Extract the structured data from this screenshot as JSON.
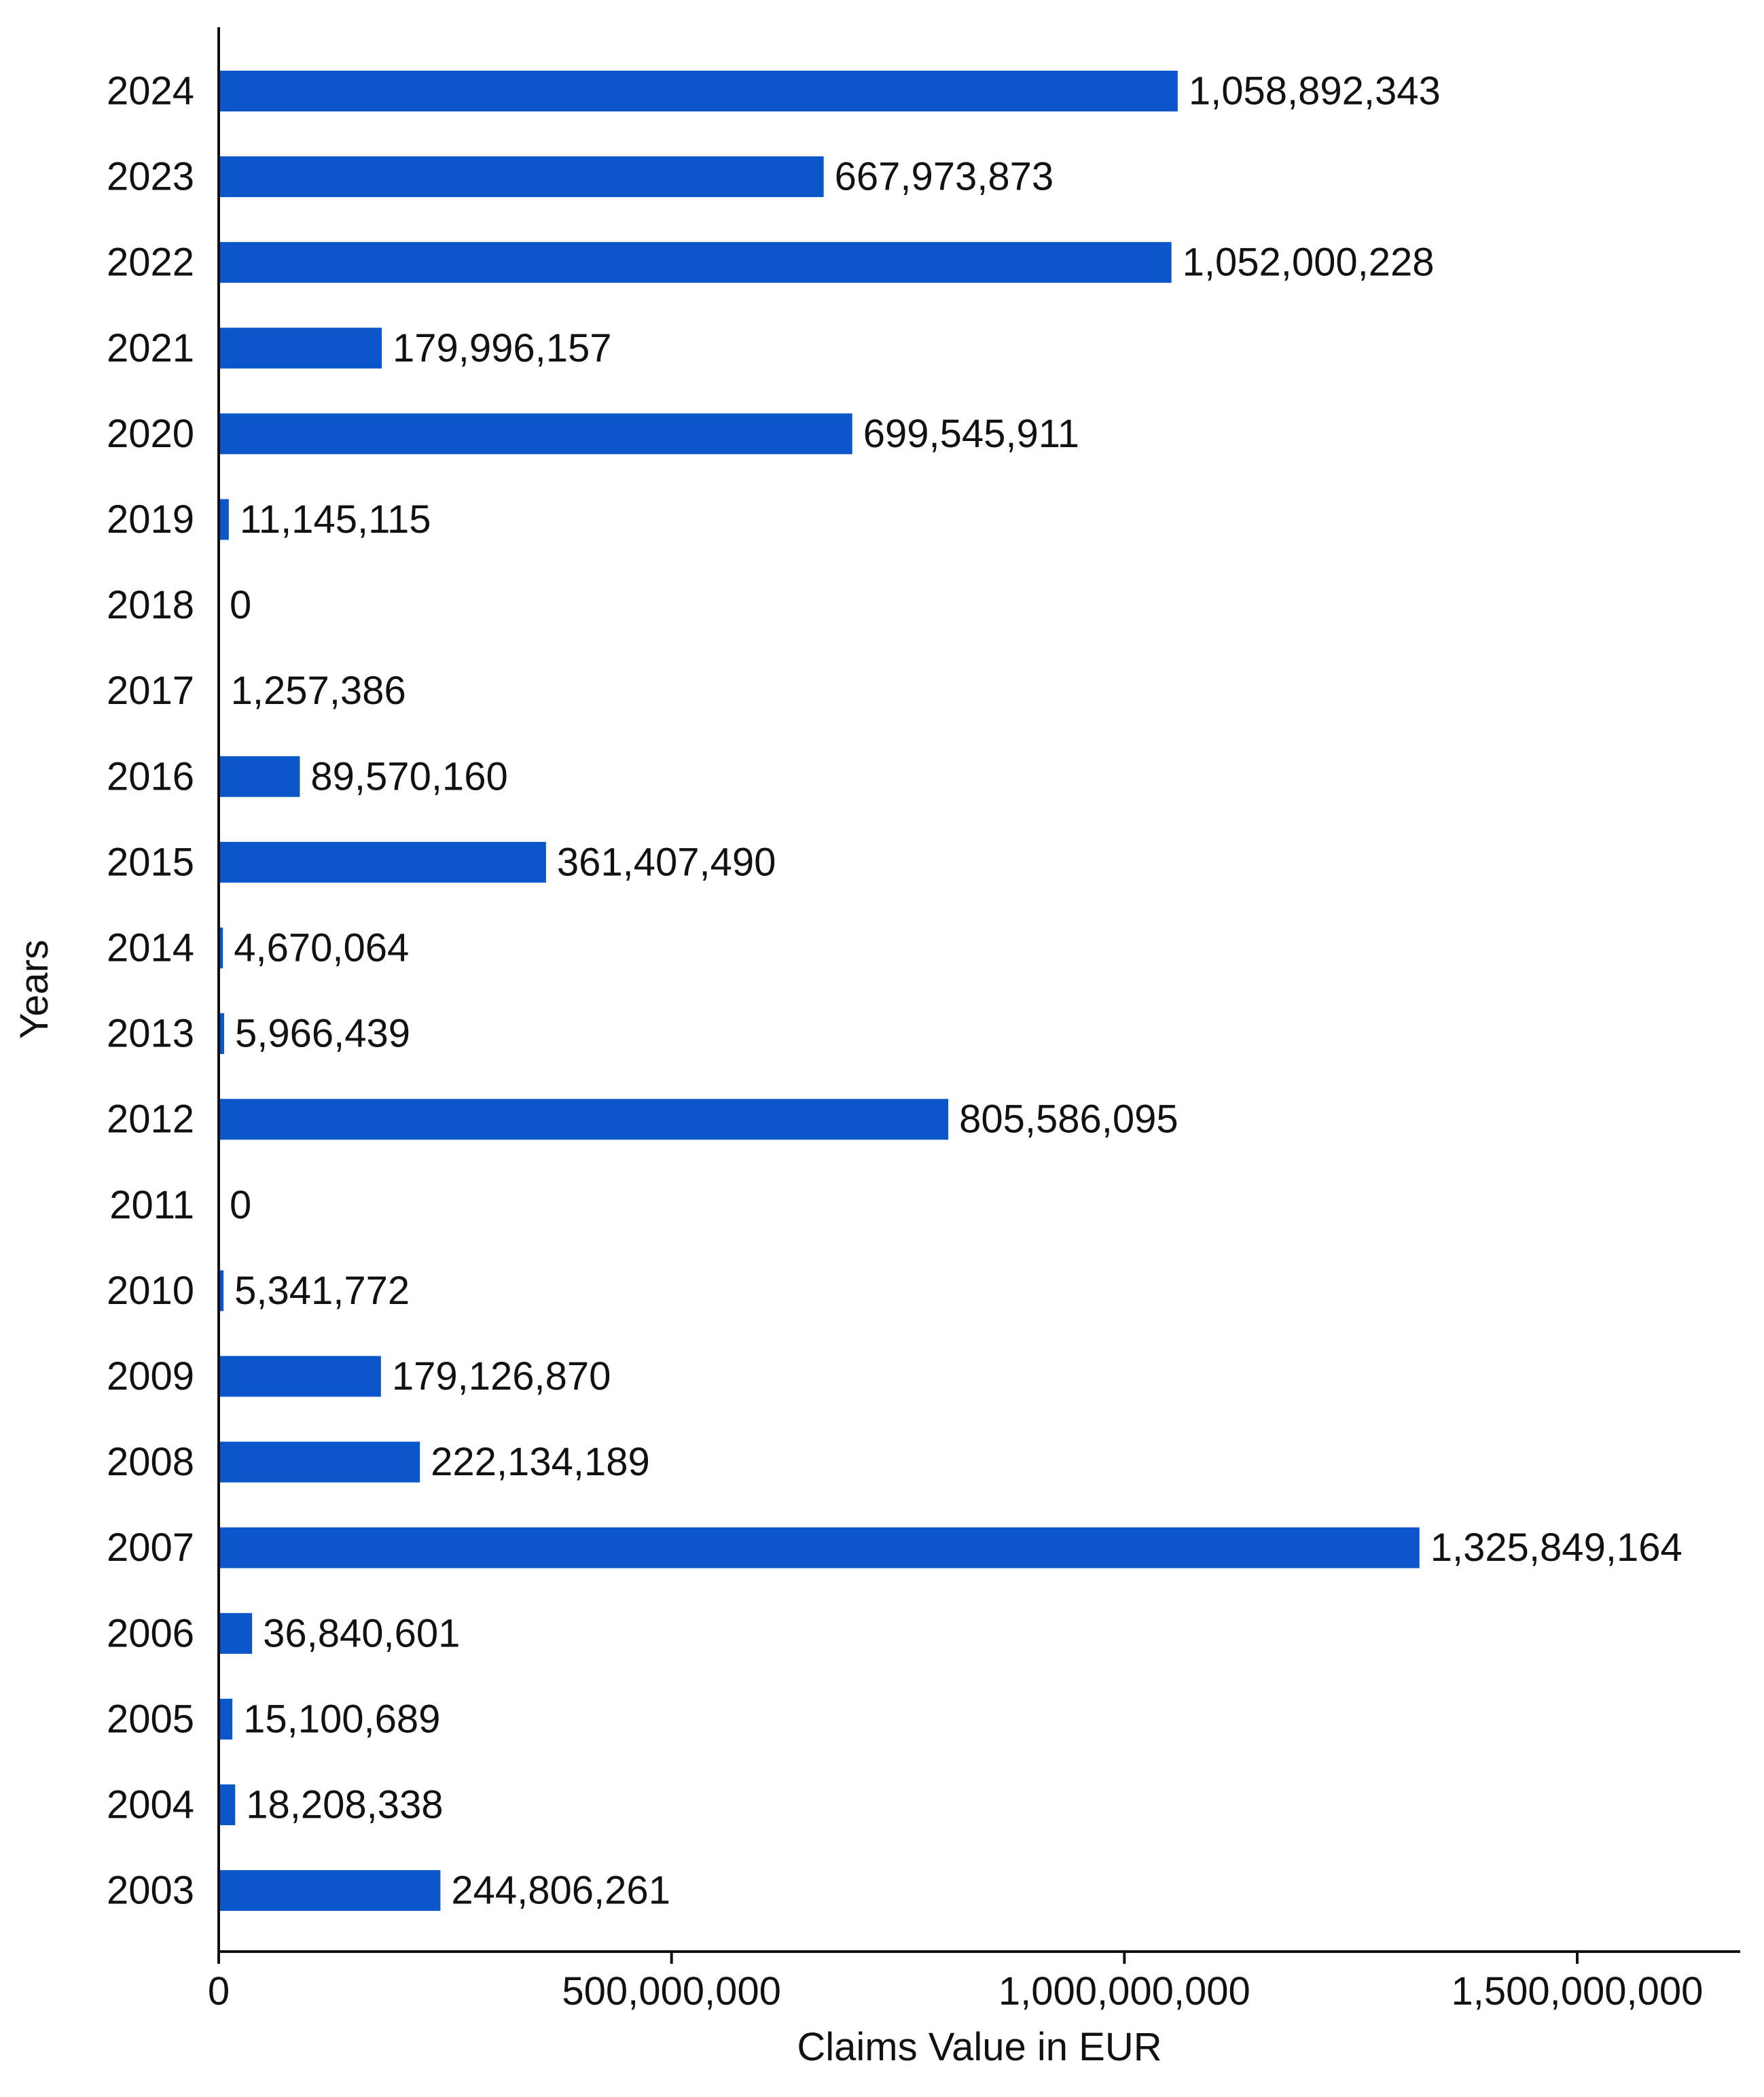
{
  "chart_data": {
    "type": "bar",
    "orientation": "horizontal",
    "title": "",
    "xlabel": "Claims Value in EUR",
    "ylabel": "Years",
    "xlim": [
      0,
      1680000000
    ],
    "grid": false,
    "bar_color": "#0b56c9",
    "x_ticks": [
      {
        "value": 0,
        "label": "0"
      },
      {
        "value": 500000000,
        "label": "500,000,000"
      },
      {
        "value": 1000000000,
        "label": "1,000,000,000"
      },
      {
        "value": 1500000000,
        "label": "1,500,000,000"
      }
    ],
    "categories": [
      "2024",
      "2023",
      "2022",
      "2021",
      "2020",
      "2019",
      "2018",
      "2017",
      "2016",
      "2015",
      "2014",
      "2013",
      "2012",
      "2011",
      "2010",
      "2009",
      "2008",
      "2007",
      "2006",
      "2005",
      "2004",
      "2003"
    ],
    "values": [
      1058892343,
      667973873,
      1052000228,
      179996157,
      699545911,
      11145115,
      0,
      1257386,
      89570160,
      361407490,
      4670064,
      5966439,
      805586095,
      0,
      5341772,
      179126870,
      222134189,
      1325849164,
      36840601,
      15100689,
      18208338,
      244806261
    ],
    "value_labels": [
      "1,058,892,343",
      "667,973,873",
      "1,052,000,228",
      "179,996,157",
      "699,545,911",
      "11,145,115",
      "0",
      "1,257,386",
      "89,570,160",
      "361,407,490",
      "4,670,064",
      "5,966,439",
      "805,586,095",
      "0",
      "5,341,772",
      "179,126,870",
      "222,134,189",
      "1,325,849,164",
      "36,840,601",
      "15,100,689",
      "18,208,338",
      "244,806,261"
    ]
  }
}
